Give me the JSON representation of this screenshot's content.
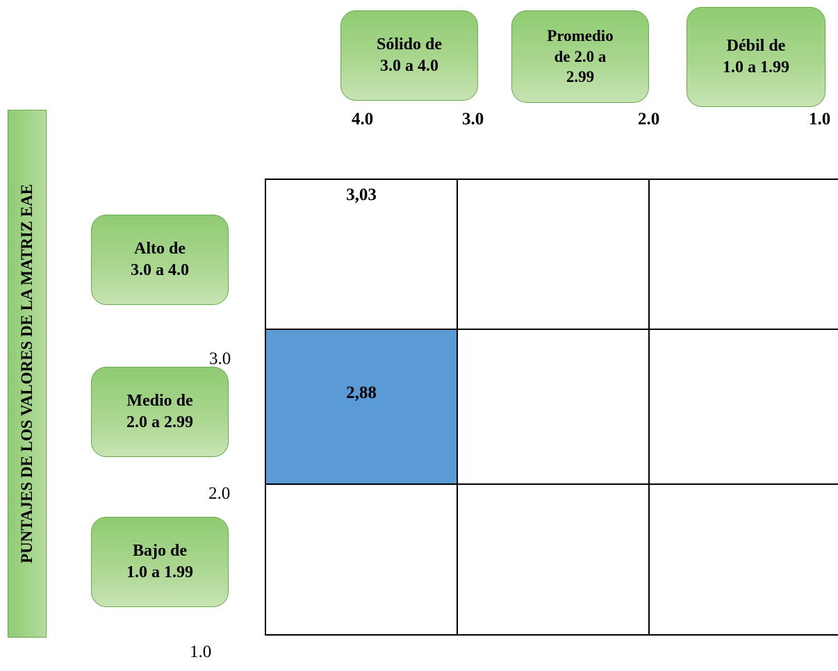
{
  "top_axis": {
    "boxes": [
      "Sólido de 3.0 a 4.0",
      "Promedio de 2.0 a 2.99",
      "Débil de 1.0 a 1.99"
    ],
    "box_lines": [
      [
        "Sólido de",
        "3.0 a 4.0"
      ],
      [
        "Promedio",
        "de 2.0 a",
        "2.99"
      ],
      [
        "Débil de",
        "1.0 a 1.99"
      ]
    ],
    "ticks": [
      "4.0",
      "3.0",
      "2.0",
      "1.0"
    ]
  },
  "left_axis": {
    "title": "PUNTAJES DE LOS VALORES DE LA MATRIZ EAE",
    "box_lines": [
      [
        "Alto de",
        "3.0 a 4.0"
      ],
      [
        "Medio de",
        "2.0 a 2.99"
      ],
      [
        "Bajo de",
        "1.0 a 1.99"
      ]
    ],
    "ticks": [
      "3.0",
      "2.0",
      "1.0"
    ]
  },
  "matrix": {
    "x_value": "3,03",
    "y_value": "2,88",
    "highlight_row": 1,
    "highlight_col": 0,
    "highlight_color": "#5b9bd5",
    "box_color": "#a9d68e"
  }
}
